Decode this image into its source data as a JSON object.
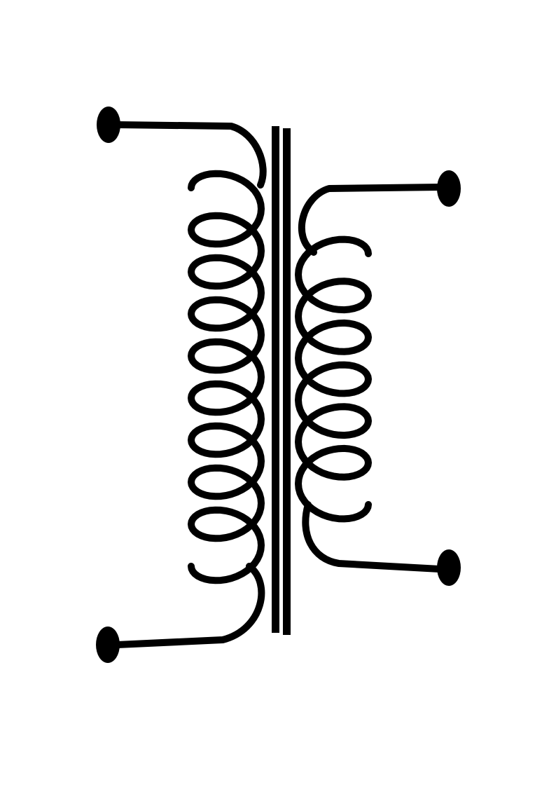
{
  "diagram": {
    "type": "transformer-schematic-symbol",
    "background_color": "#ffffff",
    "stroke_color": "#000000",
    "primary_winding": {
      "turns": 9,
      "terminals": [
        "top",
        "bottom"
      ]
    },
    "secondary_winding": {
      "turns": 6,
      "terminals": [
        "top",
        "bottom"
      ]
    },
    "core": {
      "lines": 2
    }
  }
}
